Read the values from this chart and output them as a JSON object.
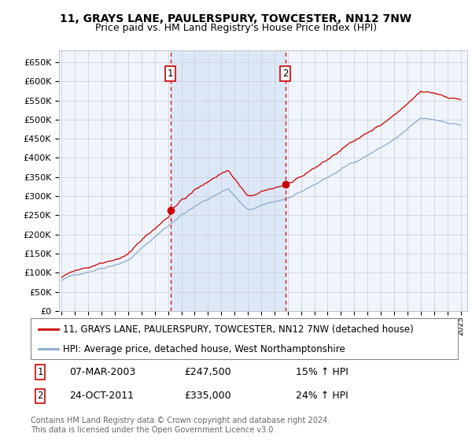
{
  "title": "11, GRAYS LANE, PAULERSPURY, TOWCESTER, NN12 7NW",
  "subtitle": "Price paid vs. HM Land Registry's House Price Index (HPI)",
  "ylabel_ticks": [
    0,
    50000,
    100000,
    150000,
    200000,
    250000,
    300000,
    350000,
    400000,
    450000,
    500000,
    550000,
    600000,
    650000
  ],
  "ylim": [
    0,
    680000
  ],
  "xlim_start": 1994.8,
  "xlim_end": 2025.5,
  "plot_bg": "#f0f4fb",
  "highlight_bg": "#dce8f8",
  "line1_color": "#cc0000",
  "line2_color": "#88aacc",
  "vline_color": "#cc0000",
  "vline1_x": 2003.18,
  "vline2_x": 2011.81,
  "dot_color": "#cc0000",
  "grid_color": "#cccccc",
  "legend_line1": "11, GRAYS LANE, PAULERSPURY, TOWCESTER, NN12 7NW (detached house)",
  "legend_line2": "HPI: Average price, detached house, West Northamptonshire",
  "annot1_num": "1",
  "annot1_date": "07-MAR-2003",
  "annot1_price": "£247,500",
  "annot1_hpi": "15% ↑ HPI",
  "annot2_num": "2",
  "annot2_date": "24-OCT-2011",
  "annot2_price": "£335,000",
  "annot2_hpi": "24% ↑ HPI",
  "footer": "Contains HM Land Registry data © Crown copyright and database right 2024.\nThis data is licensed under the Open Government Licence v3.0.",
  "title_fontsize": 10,
  "subtitle_fontsize": 9,
  "tick_fontsize": 8,
  "legend_fontsize": 8.5
}
